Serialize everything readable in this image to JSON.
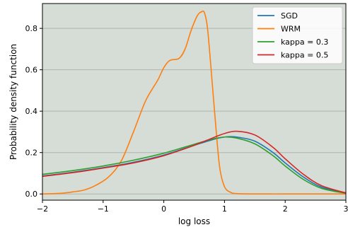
{
  "chart_data": {
    "type": "line",
    "xlabel": "log loss",
    "ylabel": "Probability density function",
    "xlim": [
      -2,
      3
    ],
    "ylim": [
      -0.03,
      0.92
    ],
    "xticks": [
      -2,
      -1,
      0,
      1,
      2,
      3
    ],
    "xtick_labels": [
      "−2",
      "−1",
      "0",
      "1",
      "2",
      "3"
    ],
    "yticks": [
      0.0,
      0.2,
      0.4,
      0.6,
      0.8
    ],
    "ytick_labels": [
      "0.0",
      "0.2",
      "0.4",
      "0.6",
      "0.8"
    ],
    "grid": "horizontal",
    "background": "#d6dcd6",
    "gridline_color": "#aeb5ae",
    "legend_position": "top-right",
    "series": [
      {
        "name": "SGD",
        "color": "#1f77b4",
        "x": [
          -2,
          -1.5,
          -1,
          -0.5,
          0,
          0.5,
          0.8,
          1.0,
          1.2,
          1.5,
          1.8,
          2.0,
          2.3,
          2.6,
          3.0
        ],
        "y": [
          0.087,
          0.105,
          0.127,
          0.153,
          0.188,
          0.235,
          0.262,
          0.275,
          0.275,
          0.255,
          0.2,
          0.15,
          0.082,
          0.033,
          0.004
        ]
      },
      {
        "name": "WRM",
        "color": "#ff7f0e",
        "x": [
          -2,
          -1.7,
          -1.5,
          -1.3,
          -1.1,
          -0.9,
          -0.7,
          -0.5,
          -0.3,
          -0.1,
          0.0,
          0.1,
          0.25,
          0.35,
          0.45,
          0.55,
          0.62,
          0.67,
          0.72,
          0.78,
          0.85,
          0.92,
          1.0,
          1.1,
          1.2,
          1.5,
          2.0,
          2.5,
          3.0
        ],
        "y": [
          0.0,
          0.003,
          0.01,
          0.02,
          0.045,
          0.085,
          0.16,
          0.3,
          0.45,
          0.55,
          0.61,
          0.645,
          0.655,
          0.7,
          0.79,
          0.86,
          0.88,
          0.875,
          0.8,
          0.6,
          0.35,
          0.13,
          0.035,
          0.008,
          0.002,
          0.0,
          0.0,
          0.0,
          0.0
        ]
      },
      {
        "name": "kappa = 0.3",
        "color": "#2ca02c",
        "x": [
          -2,
          -1.5,
          -1,
          -0.5,
          0,
          0.5,
          0.8,
          1.0,
          1.2,
          1.5,
          1.8,
          2.0,
          2.3,
          2.6,
          3.0
        ],
        "y": [
          0.095,
          0.113,
          0.135,
          0.163,
          0.197,
          0.24,
          0.265,
          0.275,
          0.27,
          0.242,
          0.185,
          0.135,
          0.07,
          0.027,
          0.003
        ]
      },
      {
        "name": "kappa = 0.5",
        "color": "#d62728",
        "x": [
          -2,
          -1.5,
          -1,
          -0.5,
          0,
          0.5,
          0.8,
          1.0,
          1.2,
          1.5,
          1.8,
          2.0,
          2.3,
          2.6,
          3.0
        ],
        "y": [
          0.085,
          0.103,
          0.125,
          0.15,
          0.185,
          0.235,
          0.27,
          0.292,
          0.303,
          0.285,
          0.225,
          0.17,
          0.095,
          0.04,
          0.005
        ]
      }
    ]
  }
}
